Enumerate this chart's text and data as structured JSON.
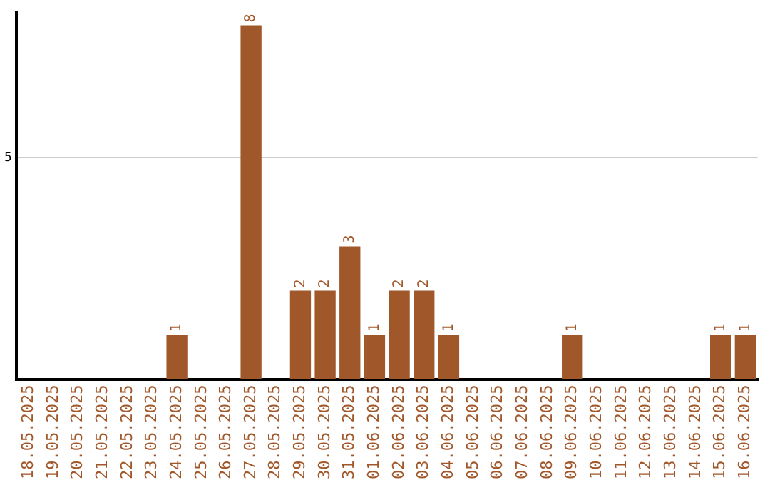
{
  "chart_data": {
    "type": "bar",
    "categories": [
      "18.05.2025",
      "19.05.2025",
      "20.05.2025",
      "21.05.2025",
      "22.05.2025",
      "23.05.2025",
      "24.05.2025",
      "25.05.2025",
      "26.05.2025",
      "27.05.2025",
      "28.05.2025",
      "29.05.2025",
      "30.05.2025",
      "31.05.2025",
      "01.06.2025",
      "02.06.2025",
      "03.06.2025",
      "04.06.2025",
      "05.06.2025",
      "06.06.2025",
      "07.06.2025",
      "08.06.2025",
      "09.06.2025",
      "10.06.2025",
      "11.06.2025",
      "12.06.2025",
      "13.06.2025",
      "14.06.2025",
      "15.06.2025",
      "16.06.2025"
    ],
    "values": [
      0,
      0,
      0,
      0,
      0,
      0,
      1,
      0,
      0,
      8,
      0,
      2,
      2,
      3,
      1,
      2,
      2,
      1,
      0,
      0,
      0,
      0,
      1,
      0,
      0,
      0,
      0,
      0,
      1,
      1
    ],
    "value_labels": [
      null,
      null,
      null,
      null,
      null,
      null,
      "1",
      null,
      null,
      "8",
      null,
      "2",
      "2",
      "3",
      "1",
      "2",
      "2",
      "1",
      null,
      null,
      null,
      null,
      "1",
      null,
      null,
      null,
      null,
      null,
      "1",
      "1"
    ],
    "color": "#a0572a",
    "ylim": [
      0,
      8.3
    ],
    "yticks": [
      5
    ],
    "grid": "y",
    "legend": false
  }
}
